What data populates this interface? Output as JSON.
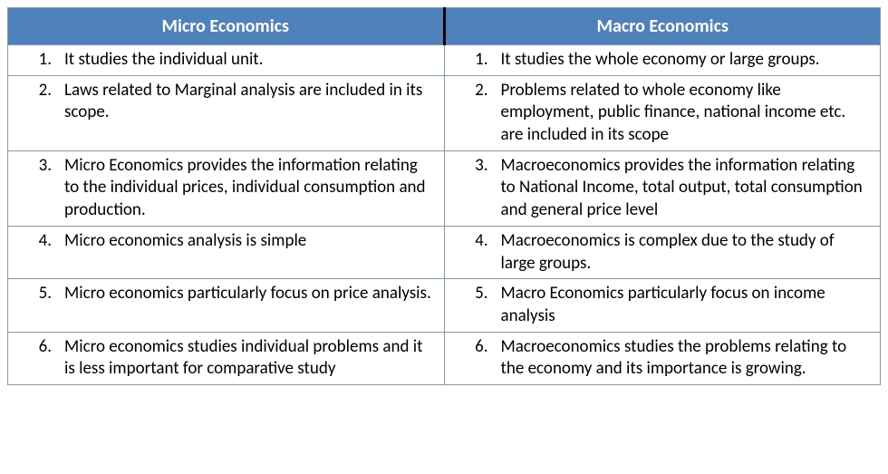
{
  "header_bg": "#4f81bd",
  "header_fg": "#ffffff",
  "border_color": "#7f9db9",
  "divider_color": "#000000",
  "font_size_header": 20,
  "font_size_body": 19,
  "columns": {
    "left": {
      "title": "Micro Economics"
    },
    "right": {
      "title": "Macro Economics"
    }
  },
  "rows": [
    {
      "left": {
        "n": "1.",
        "t": "It studies the individual unit."
      },
      "right": {
        "n": "1.",
        "t": "It studies the whole economy or large groups."
      }
    },
    {
      "left": {
        "n": "2.",
        "t": "Laws related to Marginal analysis are included in its scope."
      },
      "right": {
        "n": "2.",
        "t": "Problems related to whole economy like employment, public finance, national income etc. are included in its scope"
      }
    },
    {
      "left": {
        "n": "3.",
        "t": "Micro Economics provides the information relating to the individual prices, individual consumption and production."
      },
      "right": {
        "n": "3.",
        "t": "Macroeconomics provides the information relating to National Income, total output, total consumption and general price level"
      }
    },
    {
      "left": {
        "n": "4.",
        "t": "Micro economics analysis is simple"
      },
      "right": {
        "n": "4.",
        "t": "Macroeconomics is complex due to the study of large groups."
      }
    },
    {
      "left": {
        "n": "5.",
        "t": "Micro economics particularly focus on price analysis."
      },
      "right": {
        "n": "5.",
        "t": "Macro Economics particularly focus on income analysis"
      }
    },
    {
      "left": {
        "n": "6.",
        "t": "Micro economics studies individual problems and it is less important for comparative study"
      },
      "right": {
        "n": "6.",
        "t": "Macroeconomics studies the problems relating to the economy and its importance is growing."
      }
    }
  ]
}
